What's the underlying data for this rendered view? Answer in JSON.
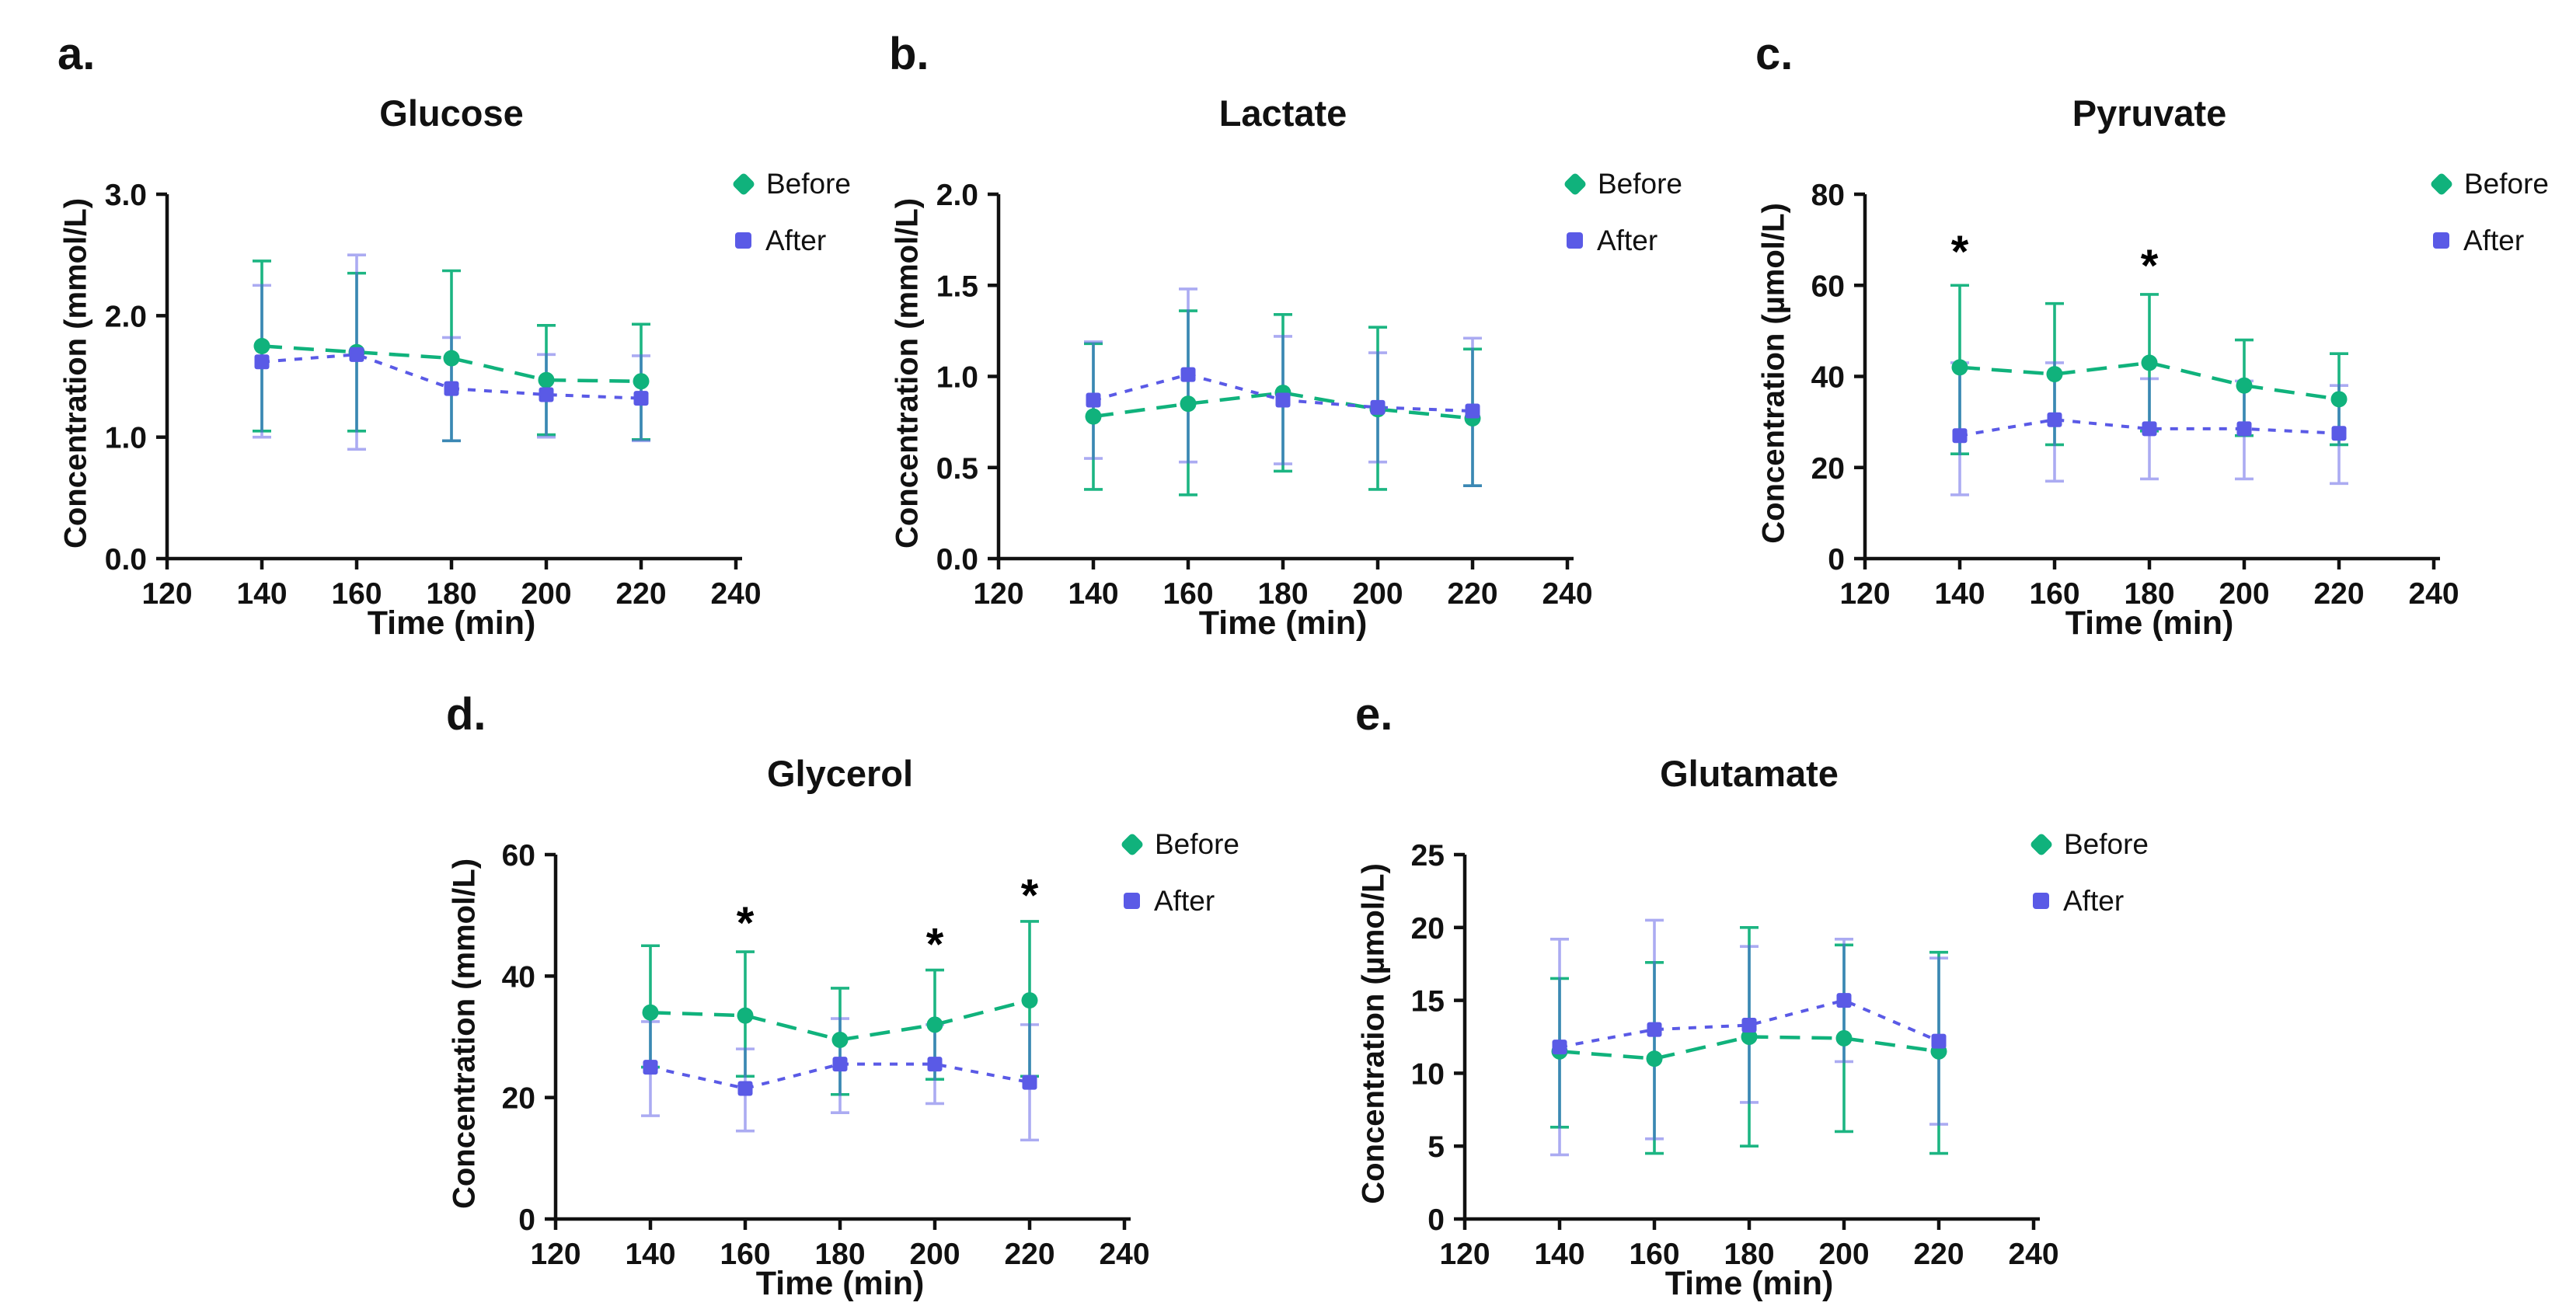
{
  "figure": {
    "panel_count": 5,
    "colors": {
      "before": "#10b27c",
      "after": "#5a5ae6",
      "axis": "#111111",
      "annotation": "#000000"
    }
  },
  "chart_data": [
    {
      "type": "line",
      "panel_label": "a.",
      "title": "Glucose",
      "xlabel": "Time (min)",
      "ylabel": "Concentration (mmol/L)",
      "xlim": [
        120,
        240
      ],
      "ylim": [
        0,
        3
      ],
      "xticks": [
        "120",
        "140",
        "160",
        "180",
        "200",
        "220",
        "240"
      ],
      "yticks": [
        "0.0",
        "1.0",
        "2.0",
        "3.0"
      ],
      "legend_position": "right",
      "grid": false,
      "series": [
        {
          "name": "Before",
          "marker": "circle",
          "color": "#10b27c",
          "x": [
            140,
            160,
            180,
            200,
            220
          ],
          "y": [
            1.75,
            1.7,
            1.65,
            1.47,
            1.46
          ],
          "err_lo": [
            1.05,
            1.05,
            0.97,
            1.02,
            0.98
          ],
          "err_hi": [
            2.45,
            2.35,
            2.37,
            1.92,
            1.93
          ]
        },
        {
          "name": "After",
          "marker": "square",
          "color": "#5a5ae6",
          "x": [
            140,
            160,
            180,
            200,
            220
          ],
          "y": [
            1.62,
            1.68,
            1.4,
            1.35,
            1.32
          ],
          "err_lo": [
            1.0,
            0.9,
            0.97,
            1.0,
            0.97
          ],
          "err_hi": [
            2.25,
            2.5,
            1.82,
            1.68,
            1.67
          ]
        }
      ],
      "annotations": []
    },
    {
      "type": "line",
      "panel_label": "b.",
      "title": "Lactate",
      "xlabel": "Time (min)",
      "ylabel": "Concentration (mmol/L)",
      "xlim": [
        120,
        240
      ],
      "ylim": [
        0,
        2
      ],
      "xticks": [
        "120",
        "140",
        "160",
        "180",
        "200",
        "220",
        "240"
      ],
      "yticks": [
        "0.0",
        "0.5",
        "1.0",
        "1.5",
        "2.0"
      ],
      "legend_position": "right",
      "grid": false,
      "series": [
        {
          "name": "Before",
          "marker": "circle",
          "color": "#10b27c",
          "x": [
            140,
            160,
            180,
            200,
            220
          ],
          "y": [
            0.78,
            0.85,
            0.91,
            0.82,
            0.77
          ],
          "err_lo": [
            0.38,
            0.35,
            0.48,
            0.38,
            0.4
          ],
          "err_hi": [
            1.18,
            1.36,
            1.34,
            1.27,
            1.15
          ]
        },
        {
          "name": "After",
          "marker": "square",
          "color": "#5a5ae6",
          "x": [
            140,
            160,
            180,
            200,
            220
          ],
          "y": [
            0.87,
            1.01,
            0.87,
            0.83,
            0.81
          ],
          "err_lo": [
            0.55,
            0.53,
            0.52,
            0.53,
            0.4
          ],
          "err_hi": [
            1.19,
            1.48,
            1.22,
            1.13,
            1.21
          ]
        }
      ],
      "annotations": []
    },
    {
      "type": "line",
      "panel_label": "c.",
      "title": "Pyruvate",
      "xlabel": "Time (min)",
      "ylabel": "Concentration (µmol/L)",
      "xlim": [
        120,
        240
      ],
      "ylim": [
        0,
        80
      ],
      "xticks": [
        "120",
        "140",
        "160",
        "180",
        "200",
        "220",
        "240"
      ],
      "yticks": [
        "0",
        "20",
        "40",
        "60",
        "80"
      ],
      "legend_position": "right",
      "grid": false,
      "series": [
        {
          "name": "Before",
          "marker": "circle",
          "color": "#10b27c",
          "x": [
            140,
            160,
            180,
            200,
            220
          ],
          "y": [
            42,
            40.5,
            43,
            38,
            35
          ],
          "err_lo": [
            23,
            25,
            28,
            27,
            25
          ],
          "err_hi": [
            60,
            56,
            58,
            48,
            45
          ]
        },
        {
          "name": "After",
          "marker": "square",
          "color": "#5a5ae6",
          "x": [
            140,
            160,
            180,
            200,
            220
          ],
          "y": [
            27,
            30.5,
            28.5,
            28.5,
            27.5
          ],
          "err_lo": [
            14,
            17,
            17.5,
            17.5,
            16.5
          ],
          "err_hi": [
            43,
            43,
            39.5,
            39,
            38
          ]
        }
      ],
      "annotations": [
        {
          "x": 140,
          "y": 67,
          "symbol": "*"
        },
        {
          "x": 180,
          "y": 64,
          "symbol": "*"
        }
      ]
    },
    {
      "type": "line",
      "panel_label": "d.",
      "title": "Glycerol",
      "xlabel": "Time (min)",
      "ylabel": "Concentration (mmol/L)",
      "xlim": [
        120,
        240
      ],
      "ylim": [
        0,
        60
      ],
      "xticks": [
        "120",
        "140",
        "160",
        "180",
        "200",
        "220",
        "240"
      ],
      "yticks": [
        "0",
        "20",
        "40",
        "60"
      ],
      "legend_position": "right",
      "grid": false,
      "series": [
        {
          "name": "Before",
          "marker": "circle",
          "color": "#10b27c",
          "x": [
            140,
            160,
            180,
            200,
            220
          ],
          "y": [
            34,
            33.5,
            29.5,
            32,
            36
          ],
          "err_lo": [
            25,
            23.5,
            20.5,
            23,
            23.5
          ],
          "err_hi": [
            45,
            44,
            38,
            41,
            49
          ]
        },
        {
          "name": "After",
          "marker": "square",
          "color": "#5a5ae6",
          "x": [
            140,
            160,
            180,
            200,
            220
          ],
          "y": [
            25,
            21.5,
            25.5,
            25.5,
            22.5
          ],
          "err_lo": [
            17,
            14.5,
            17.5,
            19,
            13
          ],
          "err_hi": [
            32.5,
            28,
            33,
            32,
            32
          ]
        }
      ],
      "annotations": [
        {
          "x": 160,
          "y": 48.5,
          "symbol": "*"
        },
        {
          "x": 200,
          "y": 45,
          "symbol": "*"
        },
        {
          "x": 220,
          "y": 53,
          "symbol": "*"
        }
      ]
    },
    {
      "type": "line",
      "panel_label": "e.",
      "title": "Glutamate",
      "xlabel": "Time (min)",
      "ylabel": "Concentration (µmol/L)",
      "xlim": [
        120,
        240
      ],
      "ylim": [
        0,
        25
      ],
      "xticks": [
        "120",
        "140",
        "160",
        "180",
        "200",
        "220",
        "240"
      ],
      "yticks": [
        "0",
        "5",
        "10",
        "15",
        "20",
        "25"
      ],
      "legend_position": "right",
      "grid": false,
      "series": [
        {
          "name": "Before",
          "marker": "circle",
          "color": "#10b27c",
          "x": [
            140,
            160,
            180,
            200,
            220
          ],
          "y": [
            11.5,
            11,
            12.5,
            12.4,
            11.5
          ],
          "err_lo": [
            6.3,
            4.5,
            5,
            6,
            4.5
          ],
          "err_hi": [
            16.5,
            17.6,
            20,
            18.8,
            18.3
          ]
        },
        {
          "name": "After",
          "marker": "square",
          "color": "#5a5ae6",
          "x": [
            140,
            160,
            180,
            200,
            220
          ],
          "y": [
            11.8,
            13,
            13.3,
            15,
            12.2
          ],
          "err_lo": [
            4.4,
            5.5,
            8,
            10.8,
            6.5
          ],
          "err_hi": [
            19.2,
            20.5,
            18.7,
            19.2,
            17.9
          ]
        }
      ],
      "annotations": []
    }
  ]
}
